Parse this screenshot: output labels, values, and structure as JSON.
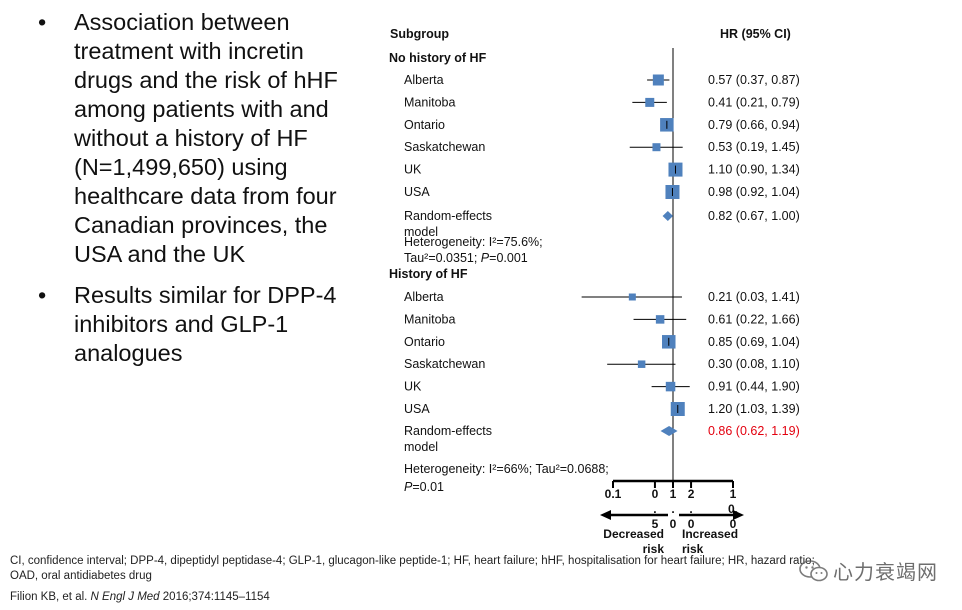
{
  "bullets": [
    {
      "text": "Association between treatment with incretin drugs and the risk of hHF among patients with and without a history of HF (N=1,499,650) using healthcare data from four Canadian provinces, the USA and the UK"
    },
    {
      "text": "Results similar for DPP-4 inhibitors and GLP-1 analogues"
    }
  ],
  "bullet_symbol": "•",
  "chart_data": {
    "type": "forest",
    "header_subgroup": "Subgroup",
    "header_hr": "HR (95% CI)",
    "x_scale": "log",
    "xlim": [
      0.1,
      10.0
    ],
    "reference_line": 1.0,
    "ticks": [
      {
        "value": 0.1,
        "label": [
          "0.1"
        ]
      },
      {
        "value": 0.5,
        "label": [
          "0",
          ".",
          "5"
        ]
      },
      {
        "value": 1.0,
        "label": [
          "1",
          ".",
          "0"
        ]
      },
      {
        "value": 2.0,
        "label": [
          "2",
          ".",
          "0"
        ]
      },
      {
        "value": 10.0,
        "label": [
          "1",
          "0.",
          "0"
        ]
      }
    ],
    "arrow_left_label": [
      "Decreased",
      "risk"
    ],
    "arrow_right_label": [
      "Increased",
      "risk"
    ],
    "marker_color": "#4F81BD",
    "highlight_color": "#E3000F",
    "groups": [
      {
        "name": "No history of HF",
        "rows": [
          {
            "label": "Alberta",
            "hr": 0.57,
            "lo": 0.37,
            "hi": 0.87,
            "text": "0.57 (0.37, 0.87)",
            "weight": 0.7
          },
          {
            "label": "Manitoba",
            "hr": 0.41,
            "lo": 0.21,
            "hi": 0.79,
            "text": "0.41 (0.21, 0.79)",
            "weight": 0.5
          },
          {
            "label": "Ontario",
            "hr": 0.79,
            "lo": 0.66,
            "hi": 0.94,
            "text": "0.79 (0.66, 0.94)",
            "weight": 0.95
          },
          {
            "label": "Saskatchewan",
            "hr": 0.53,
            "lo": 0.19,
            "hi": 1.45,
            "text": "0.53 (0.19, 1.45)",
            "weight": 0.4
          },
          {
            "label": "UK",
            "hr": 1.1,
            "lo": 0.9,
            "hi": 1.34,
            "text": "1.10 (0.90, 1.34)",
            "weight": 1.0
          },
          {
            "label": "USA",
            "hr": 0.98,
            "lo": 0.92,
            "hi": 1.04,
            "text": "0.98 (0.92, 1.04)",
            "weight": 1.0
          }
        ],
        "pooled": {
          "label": [
            "Random-effects",
            "model"
          ],
          "hr": 0.82,
          "lo": 0.67,
          "hi": 1.0,
          "text": "0.82 (0.67, 1.00)",
          "highlight": false
        },
        "heterogeneity": [
          "Heterogeneity: I²=75.6%;",
          "Tau²=0.0351; P=0.001"
        ]
      },
      {
        "name": "History of HF",
        "rows": [
          {
            "label": "Alberta",
            "hr": 0.21,
            "lo": 0.03,
            "hi": 1.41,
            "text": "0.21 (0.03, 1.41)",
            "weight": 0.3
          },
          {
            "label": "Manitoba",
            "hr": 0.61,
            "lo": 0.22,
            "hi": 1.66,
            "text": "0.61 (0.22, 1.66)",
            "weight": 0.45
          },
          {
            "label": "Ontario",
            "hr": 0.85,
            "lo": 0.69,
            "hi": 1.04,
            "text": "0.85 (0.69, 1.04)",
            "weight": 0.95
          },
          {
            "label": "Saskatchewan",
            "hr": 0.3,
            "lo": 0.08,
            "hi": 1.1,
            "text": "0.30 (0.08, 1.10)",
            "weight": 0.35
          },
          {
            "label": "UK",
            "hr": 0.91,
            "lo": 0.44,
            "hi": 1.9,
            "text": "0.91 (0.44, 1.90)",
            "weight": 0.55
          },
          {
            "label": "USA",
            "hr": 1.2,
            "lo": 1.03,
            "hi": 1.39,
            "text": "1.20 (1.03, 1.39)",
            "weight": 1.0
          }
        ],
        "pooled": {
          "label": [
            "Random-effects",
            "model"
          ],
          "hr": 0.86,
          "lo": 0.62,
          "hi": 1.19,
          "text": "0.86 (0.62, 1.19)",
          "highlight": true
        },
        "heterogeneity": [
          "Heterogeneity: I²=66%; Tau²=0.0688;",
          "P=0.01"
        ]
      }
    ]
  },
  "footer": {
    "abbreviations": "CI, confidence interval; DPP-4, dipeptidyl peptidase-4; GLP-1, glucagon-like peptide-1; HF, heart failure; hHF, hospitalisation for heart failure; HR, hazard ratio; OAD, oral antidiabetes drug",
    "citation_authors": "Filion KB, et al. ",
    "citation_journal": "N Engl J Med",
    "citation_rest": " 2016;374:1145–1154"
  },
  "watermark": {
    "text": "心力衰竭网",
    "icon": "wechat-icon"
  }
}
